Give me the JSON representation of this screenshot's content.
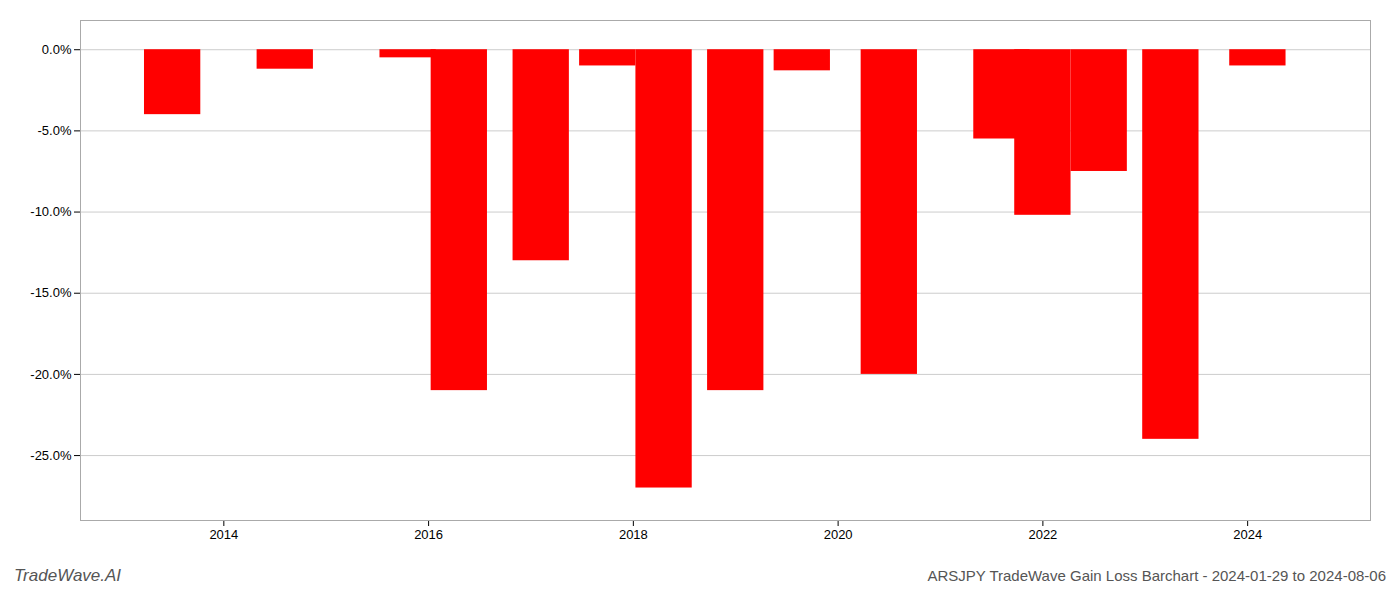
{
  "chart_data": {
    "type": "bar",
    "title": "ARSJPY TradeWave Gain Loss Barchart - 2024-01-29 to 2024-08-06",
    "annotations": [
      "TradeWave.AI"
    ],
    "x": [
      2013.5,
      2014.6,
      2015.8,
      2016.3,
      2017.1,
      2017.75,
      2018.3,
      2019.0,
      2019.65,
      2020.5,
      2021.6,
      2022.0,
      2022.55,
      2023.25,
      2024.1
    ],
    "values": [
      -4.0,
      -1.2,
      -0.5,
      -21.0,
      -13.0,
      -1.0,
      -27.0,
      -21.0,
      -1.3,
      -20.0,
      -5.5,
      -10.2,
      -7.5,
      -24.0,
      -1.0
    ],
    "color": "#ff0000",
    "xlim": [
      2012.6,
      2025.2
    ],
    "xticks": [
      2014,
      2016,
      2018,
      2020,
      2022,
      2024
    ],
    "ylim": [
      -29.0,
      1.8
    ],
    "yticks": [
      {
        "value": 0.0,
        "label": "0.0%"
      },
      {
        "value": -5.0,
        "label": "-5.0%"
      },
      {
        "value": -10.0,
        "label": "-10.0%"
      },
      {
        "value": -15.0,
        "label": "-15.0%"
      },
      {
        "value": -20.0,
        "label": "-20.0%"
      },
      {
        "value": -25.0,
        "label": "-25.0%"
      }
    ],
    "grid": true
  }
}
